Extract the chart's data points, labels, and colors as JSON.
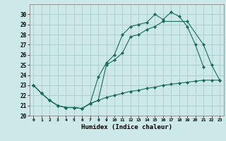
{
  "title": "",
  "xlabel": "Humidex (Indice chaleur)",
  "bg_color": "#cce8e8",
  "grid_color": "#aacccc",
  "line_color": "#1a6b5a",
  "xlim": [
    -0.5,
    23.5
  ],
  "ylim": [
    20,
    31
  ],
  "xticks": [
    0,
    1,
    2,
    3,
    4,
    5,
    6,
    7,
    8,
    9,
    10,
    11,
    12,
    13,
    14,
    15,
    16,
    17,
    18,
    19,
    20,
    21,
    22,
    23
  ],
  "yticks": [
    20,
    21,
    22,
    23,
    24,
    25,
    26,
    27,
    28,
    29,
    30
  ],
  "series": [
    {
      "x": [
        0,
        1,
        2,
        3,
        4,
        5,
        6,
        7,
        8,
        9,
        10,
        11,
        12,
        13,
        14,
        15,
        16,
        17,
        18,
        19,
        20,
        21
      ],
      "y": [
        23.0,
        22.2,
        21.5,
        21.0,
        20.8,
        20.8,
        20.7,
        21.2,
        23.8,
        25.2,
        26.0,
        28.0,
        28.8,
        29.0,
        29.2,
        30.0,
        29.5,
        30.2,
        29.8,
        28.8,
        27.0,
        24.8
      ]
    },
    {
      "x": [
        0,
        1,
        2,
        3,
        4,
        5,
        6,
        7,
        8,
        9,
        10,
        11,
        12,
        13,
        14,
        15,
        16,
        19,
        21,
        22,
        23
      ],
      "y": [
        23.0,
        22.2,
        21.5,
        21.0,
        20.8,
        20.8,
        20.7,
        21.2,
        21.5,
        25.0,
        25.5,
        26.2,
        27.8,
        28.0,
        28.5,
        28.8,
        29.3,
        29.3,
        27.0,
        25.0,
        23.5
      ]
    },
    {
      "x": [
        0,
        1,
        2,
        3,
        4,
        5,
        6,
        7,
        8,
        9,
        10,
        11,
        12,
        13,
        14,
        15,
        16,
        17,
        18,
        19,
        20,
        21,
        22,
        23
      ],
      "y": [
        23.0,
        22.2,
        21.5,
        21.0,
        20.8,
        20.8,
        20.7,
        21.2,
        21.5,
        21.8,
        22.0,
        22.2,
        22.4,
        22.5,
        22.7,
        22.8,
        23.0,
        23.1,
        23.2,
        23.3,
        23.4,
        23.5,
        23.5,
        23.5
      ]
    }
  ]
}
